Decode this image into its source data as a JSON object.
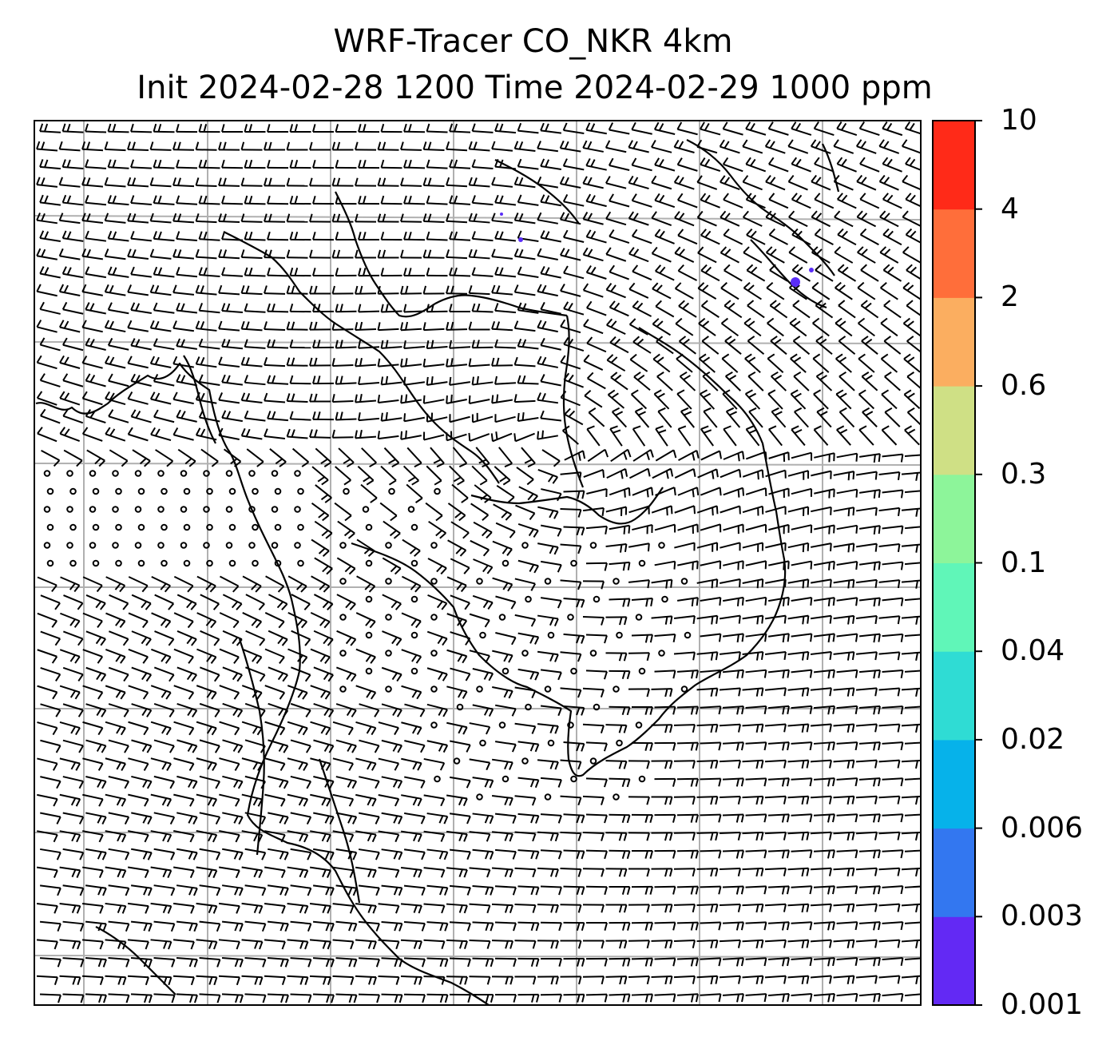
{
  "title": {
    "line1": "WRF-Tracer CO_NKR 4km",
    "line2": "Init 2024-02-28 1200 Time 2024-02-29 1000 ppm"
  },
  "map": {
    "gridlines": true,
    "gridline_color": "#b0b0b0",
    "coastline_color": "#000000",
    "wind_barb_color": "#000000",
    "tracer_patches": [
      {
        "label": "CO plume near map top-right",
        "level": "0.001-0.003",
        "color": "#5a2df7"
      },
      {
        "label": "CO trace near map top-center",
        "level": "0.001-0.003",
        "color": "#5a2df7"
      }
    ]
  },
  "colorbar": {
    "unit": "ppm",
    "levels": [
      "0.001",
      "0.003",
      "0.006",
      "0.02",
      "0.04",
      "0.1",
      "0.3",
      "0.6",
      "2",
      "4",
      "10"
    ],
    "colors": [
      "#6329f4",
      "#3377f0",
      "#06b2ea",
      "#2fdcd4",
      "#60f6b8",
      "#8df59a",
      "#cfe085",
      "#fbae60",
      "#ff6e3a",
      "#ff2a18"
    ]
  }
}
